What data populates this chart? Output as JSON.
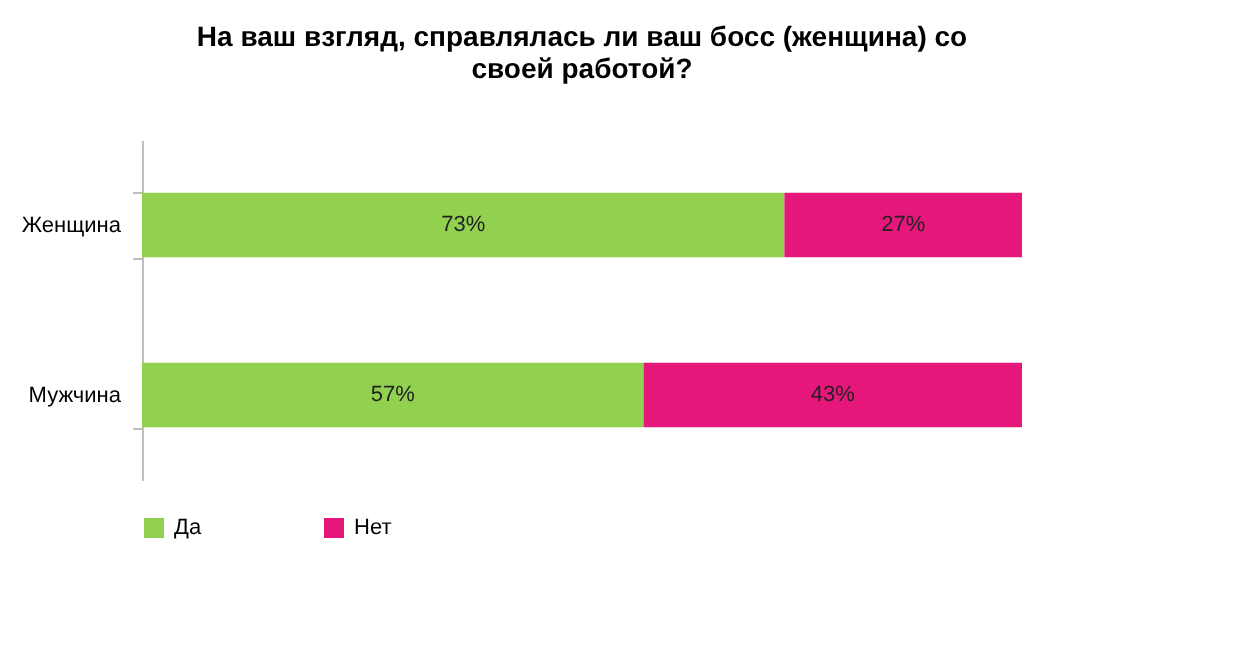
{
  "chart_data": {
    "type": "bar",
    "orientation": "horizontal",
    "stacked": true,
    "title": [
      "На ваш взгляд, справлялась ли ваш босс (женщина) со",
      "своей работой?"
    ],
    "categories": [
      "Женщина",
      "Мужчина"
    ],
    "series": [
      {
        "name": "Да",
        "color": "#92d050",
        "values": [
          73,
          57
        ],
        "value_labels": [
          "73%",
          "57%"
        ]
      },
      {
        "name": "Нет",
        "color": "#e6177a",
        "values": [
          27,
          43
        ],
        "value_labels": [
          "27%",
          "43%"
        ]
      }
    ],
    "legend": "bottom"
  }
}
